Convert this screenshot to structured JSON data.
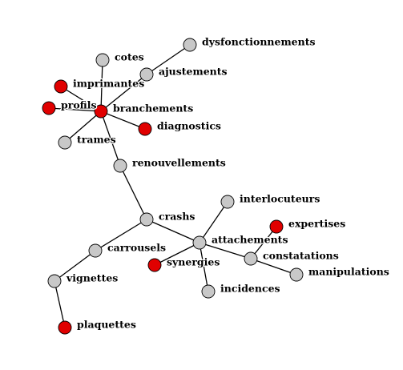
{
  "colors": {
    "gray": "#c8c8c8",
    "red": "#e00000",
    "edge": "#000000"
  },
  "nodes": [
    {
      "id": "dysfonctionnements",
      "label": "dysfonctionnements",
      "color": "gray"
    },
    {
      "id": "cotes",
      "label": "cotes",
      "color": "gray"
    },
    {
      "id": "ajustements",
      "label": "ajustements",
      "color": "gray"
    },
    {
      "id": "imprimantes",
      "label": "imprimantes",
      "color": "red"
    },
    {
      "id": "profils",
      "label": "profils",
      "color": "red"
    },
    {
      "id": "branchements",
      "label": "branchements",
      "color": "red"
    },
    {
      "id": "diagnostics",
      "label": "diagnostics",
      "color": "red"
    },
    {
      "id": "trames",
      "label": "trames",
      "color": "gray"
    },
    {
      "id": "renouvellements",
      "label": "renouvellements",
      "color": "gray"
    },
    {
      "id": "interlocuteurs",
      "label": "interlocuteurs",
      "color": "gray"
    },
    {
      "id": "crashs",
      "label": "crashs",
      "color": "gray"
    },
    {
      "id": "expertises",
      "label": "expertises",
      "color": "red"
    },
    {
      "id": "attachements",
      "label": "attachements",
      "color": "gray"
    },
    {
      "id": "carrousels",
      "label": "carrousels",
      "color": "gray"
    },
    {
      "id": "constatations",
      "label": "constatations",
      "color": "gray"
    },
    {
      "id": "synergies",
      "label": "synergies",
      "color": "red"
    },
    {
      "id": "manipulations",
      "label": "manipulations",
      "color": "gray"
    },
    {
      "id": "vignettes",
      "label": "vignettes",
      "color": "gray"
    },
    {
      "id": "incidences",
      "label": "incidences",
      "color": "gray"
    },
    {
      "id": "plaquettes",
      "label": "plaquettes",
      "color": "red"
    }
  ],
  "edges": [
    [
      "dysfonctionnements",
      "ajustements"
    ],
    [
      "ajustements",
      "branchements"
    ],
    [
      "cotes",
      "branchements"
    ],
    [
      "imprimantes",
      "branchements"
    ],
    [
      "profils",
      "branchements"
    ],
    [
      "diagnostics",
      "branchements"
    ],
    [
      "trames",
      "branchements"
    ],
    [
      "branchements",
      "renouvellements"
    ],
    [
      "renouvellements",
      "crashs"
    ],
    [
      "crashs",
      "carrousels"
    ],
    [
      "carrousels",
      "vignettes"
    ],
    [
      "vignettes",
      "plaquettes"
    ],
    [
      "crashs",
      "attachements"
    ],
    [
      "interlocuteurs",
      "attachements"
    ],
    [
      "attachements",
      "synergies"
    ],
    [
      "attachements",
      "incidences"
    ],
    [
      "attachements",
      "constatations"
    ],
    [
      "constatations",
      "manipulations"
    ],
    [
      "constatations",
      "expertises"
    ]
  ]
}
